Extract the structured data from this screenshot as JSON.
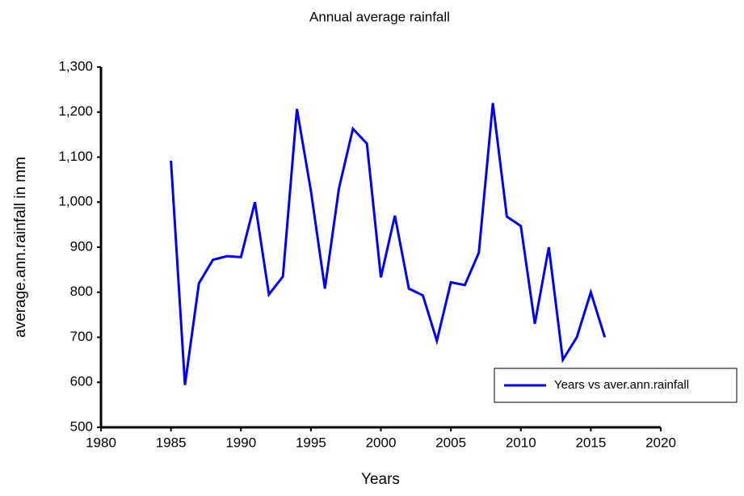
{
  "chart_data": {
    "type": "line",
    "title": "Annual average rainfall",
    "x_label": "Years",
    "y_label": "average.ann.rainfall in mm",
    "x": [
      1985,
      1986,
      1987,
      1988,
      1989,
      1990,
      1991,
      1992,
      1993,
      1994,
      1995,
      1996,
      1997,
      1998,
      1999,
      2000,
      2001,
      2002,
      2003,
      2004,
      2005,
      2006,
      2007,
      2008,
      2009,
      2010,
      2011,
      2012,
      2013,
      2014,
      2015,
      2016
    ],
    "series": [
      {
        "name": "Years vs aver.ann.rainfall",
        "color": "#0000ff",
        "values": [
          1092,
          594,
          820,
          872,
          880,
          878,
          1000,
          795,
          835,
          1207,
          1025,
          808,
          1030,
          1163,
          1130,
          833,
          970,
          808,
          793,
          692,
          822,
          816,
          888,
          1220,
          968,
          947,
          730,
          900,
          650,
          700,
          800,
          700
        ]
      }
    ],
    "xlim": [
      1980,
      2020
    ],
    "xticks": [
      1980,
      1985,
      1990,
      1995,
      2000,
      2005,
      2010,
      2015,
      2020
    ],
    "ylim": [
      500,
      1300
    ],
    "yticks": [
      500,
      600,
      700,
      800,
      900,
      {
        "value": 1000,
        "label": "1,000"
      },
      {
        "value": 1100,
        "label": "1,100"
      },
      {
        "value": 1200,
        "label": "1,200"
      },
      {
        "value": 1300,
        "label": "1,300"
      }
    ],
    "grid": false,
    "legend": "lower right"
  }
}
